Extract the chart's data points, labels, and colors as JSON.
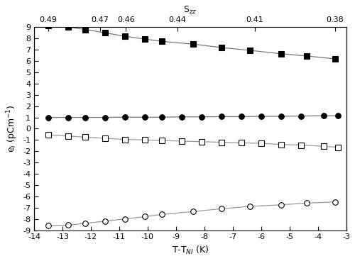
{
  "x_filled_squares": [
    -13.5,
    -12.8,
    -12.2,
    -11.5,
    -10.8,
    -10.1,
    -9.5,
    -8.4,
    -7.4,
    -6.4,
    -5.3,
    -4.4,
    -3.4
  ],
  "y_filled_squares": [
    9.15,
    9.0,
    8.8,
    8.5,
    8.2,
    7.95,
    7.75,
    7.5,
    7.2,
    6.95,
    6.65,
    6.45,
    6.2
  ],
  "x_filled_circles": [
    -13.5,
    -12.8,
    -12.2,
    -11.5,
    -10.8,
    -10.1,
    -9.5,
    -8.8,
    -8.1,
    -7.4,
    -6.7,
    -6.0,
    -5.3,
    -4.6,
    -3.8,
    -3.3
  ],
  "y_filled_circles": [
    1.0,
    1.0,
    1.0,
    1.0,
    1.02,
    1.02,
    1.02,
    1.05,
    1.05,
    1.07,
    1.07,
    1.1,
    1.1,
    1.12,
    1.15,
    1.15
  ],
  "x_open_squares": [
    -13.5,
    -12.8,
    -12.2,
    -11.5,
    -10.8,
    -10.1,
    -9.5,
    -8.8,
    -8.1,
    -7.4,
    -6.7,
    -6.0,
    -5.3,
    -4.6,
    -3.8,
    -3.3
  ],
  "y_open_squares": [
    -0.55,
    -0.65,
    -0.75,
    -0.85,
    -0.95,
    -1.0,
    -1.05,
    -1.1,
    -1.15,
    -1.2,
    -1.25,
    -1.3,
    -1.4,
    -1.45,
    -1.55,
    -1.65
  ],
  "x_open_circles": [
    -13.5,
    -12.8,
    -12.2,
    -11.5,
    -10.8,
    -10.1,
    -9.5,
    -8.4,
    -7.4,
    -6.4,
    -5.3,
    -4.4,
    -3.4
  ],
  "y_open_circles": [
    -8.6,
    -8.55,
    -8.4,
    -8.2,
    -8.0,
    -7.8,
    -7.6,
    -7.35,
    -7.1,
    -6.9,
    -6.75,
    -6.6,
    -6.5
  ],
  "szz_labels": [
    0.49,
    0.47,
    0.46,
    0.44,
    0.41,
    0.38
  ],
  "szz_t_positions": [
    -13.5,
    -11.68,
    -10.77,
    -8.95,
    -6.22,
    -3.4
  ],
  "xlabel": "T-T$_{NI}$ (K)",
  "ylabel": "e$_{i}$ (pCm$^{-1}$)",
  "top_xlabel": "S$_{zz}$",
  "xlim": [
    -14,
    -3
  ],
  "ylim": [
    -9,
    9
  ],
  "xticks": [
    -14,
    -13,
    -12,
    -11,
    -10,
    -9,
    -8,
    -7,
    -6,
    -5,
    -4,
    -3
  ],
  "yticks": [
    -9,
    -8,
    -7,
    -6,
    -5,
    -4,
    -3,
    -2,
    -1,
    0,
    1,
    2,
    3,
    4,
    5,
    6,
    7,
    8,
    9
  ],
  "line_color_dark": "#777777",
  "line_color_light": "#999999",
  "marker_size": 5.5,
  "line_width": 0.9,
  "figsize": [
    5.0,
    3.68
  ],
  "dpi": 100
}
